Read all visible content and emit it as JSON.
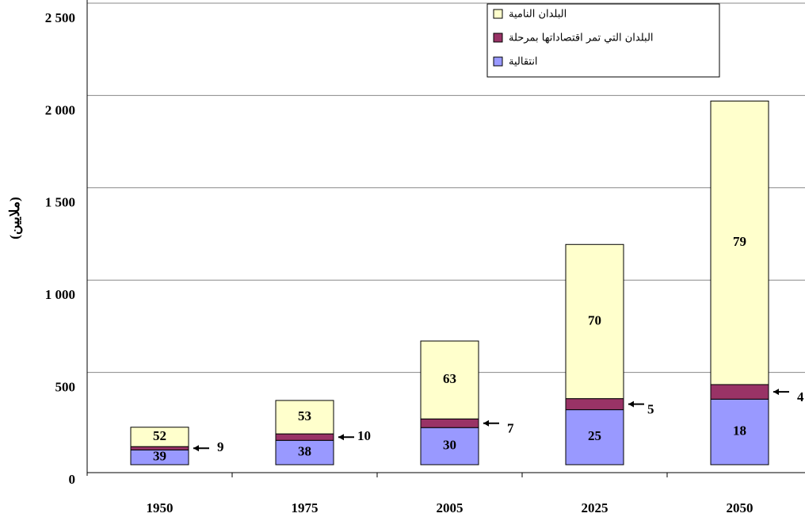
{
  "chart_data": {
    "type": "stacked-bar",
    "y_label": "(ملايين)",
    "categories": [
      "1950",
      "1975",
      "2005",
      "2025",
      "2050"
    ],
    "series": [
      {
        "name": "انتقالية",
        "color": "#9999ff",
        "values": [
          80,
          132,
          201,
          298,
          355
        ],
        "labels": [
          39,
          38,
          30,
          25,
          18
        ]
      },
      {
        "name": "البلدان التي تمر اقتصاداتها بمرحلة",
        "color": "#993366",
        "values": [
          18,
          35,
          47,
          60,
          79
        ],
        "labels": [
          9,
          10,
          7,
          5,
          4
        ]
      },
      {
        "name": "البلدان النامية",
        "color": "#ffffcc",
        "values": [
          105,
          181,
          422,
          835,
          1536
        ],
        "labels": [
          52,
          53,
          63,
          70,
          79
        ]
      }
    ],
    "ylim": [
      0,
      2500
    ],
    "yticks": [
      0,
      500,
      {
        "value": 1000,
        "label": "1 000"
      },
      {
        "value": 1500,
        "label": "1 500"
      },
      {
        "value": 2000,
        "label": "2 000"
      },
      {
        "value": 2500,
        "label": "2 500"
      }
    ],
    "grid": true,
    "legend": "top-right"
  }
}
